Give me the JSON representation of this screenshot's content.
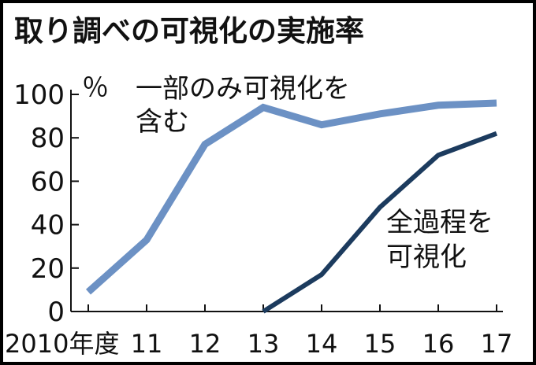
{
  "chart_data": {
    "type": "line",
    "title": "取り調べの可視化の実施率",
    "ylabel": "％",
    "x": [
      "2010年度",
      "11",
      "12",
      "13",
      "14",
      "15",
      "16",
      "17"
    ],
    "ylim": [
      0,
      100
    ],
    "yticks": [
      "0",
      "20",
      "40",
      "60",
      "80",
      "100"
    ],
    "grid": false,
    "series": [
      {
        "name": "一部のみ可視化を含む",
        "label_lines": [
          "一部のみ可視化を",
          "含む"
        ],
        "color": "#6c91c4",
        "values": [
          9,
          33,
          77,
          94,
          86,
          91,
          95,
          96
        ]
      },
      {
        "name": "全過程を可視化",
        "label_lines": [
          "全過程を",
          "可視化"
        ],
        "color": "#1c3b5e",
        "values": [
          null,
          null,
          null,
          0,
          17,
          48,
          72,
          82
        ]
      }
    ]
  }
}
